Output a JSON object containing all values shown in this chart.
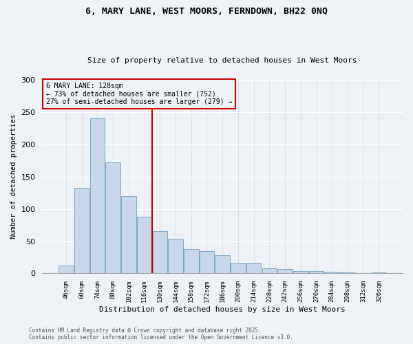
{
  "title_line1": "6, MARY LANE, WEST MOORS, FERNDOWN, BH22 0NQ",
  "title_line2": "Size of property relative to detached houses in West Moors",
  "xlabel": "Distribution of detached houses by size in West Moors",
  "ylabel": "Number of detached properties",
  "bar_labels": [
    "46sqm",
    "60sqm",
    "74sqm",
    "88sqm",
    "102sqm",
    "116sqm",
    "130sqm",
    "144sqm",
    "158sqm",
    "172sqm",
    "186sqm",
    "200sqm",
    "214sqm",
    "228sqm",
    "242sqm",
    "256sqm",
    "270sqm",
    "284sqm",
    "298sqm",
    "312sqm",
    "326sqm"
  ],
  "bar_values": [
    12,
    133,
    240,
    172,
    120,
    88,
    66,
    54,
    38,
    35,
    28,
    16,
    16,
    8,
    7,
    4,
    4,
    3,
    2,
    1,
    2
  ],
  "bar_color": "#c8d8ea",
  "bar_edge_color": "#7baac8",
  "vline_color": "#cc0000",
  "annotation_title": "6 MARY LANE: 128sqm",
  "annotation_line2": "← 73% of detached houses are smaller (752)",
  "annotation_line3": "27% of semi-detached houses are larger (279) →",
  "annotation_box_color": "#cc0000",
  "footnote1": "Contains HM Land Registry data © Crown copyright and database right 2025.",
  "footnote2": "Contains public sector information licensed under the Open Government Licence v3.0.",
  "ylim": [
    0,
    300
  ],
  "background_color": "#eef2f7"
}
